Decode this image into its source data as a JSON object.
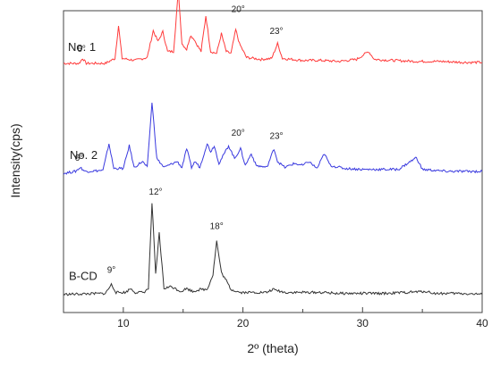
{
  "chart_data": {
    "type": "line",
    "title": "",
    "xlabel": "2º (theta)",
    "ylabel": "Intensity(cps)",
    "xlim": [
      5,
      40
    ],
    "x_ticks": [
      10,
      20,
      30,
      40
    ],
    "y_ticks_shown": false,
    "grid": false,
    "legend": "none",
    "series": [
      {
        "name": "No. 1",
        "color": "#ff3b3b",
        "baseline": 0.88,
        "points": [
          [
            5,
            0.0
          ],
          [
            6.3,
            0.0
          ],
          [
            6.6,
            0.05
          ],
          [
            6.9,
            0.0
          ],
          [
            8.5,
            0.0
          ],
          [
            9.3,
            0.05
          ],
          [
            9.6,
            0.38
          ],
          [
            9.9,
            0.05
          ],
          [
            11.0,
            0.03
          ],
          [
            12.0,
            0.06
          ],
          [
            12.5,
            0.33
          ],
          [
            12.9,
            0.22
          ],
          [
            13.3,
            0.32
          ],
          [
            13.7,
            0.12
          ],
          [
            14.2,
            0.12
          ],
          [
            14.6,
            0.73
          ],
          [
            14.9,
            0.2
          ],
          [
            15.3,
            0.14
          ],
          [
            15.6,
            0.28
          ],
          [
            15.9,
            0.25
          ],
          [
            16.1,
            0.2
          ],
          [
            16.5,
            0.12
          ],
          [
            16.9,
            0.48
          ],
          [
            17.3,
            0.12
          ],
          [
            17.8,
            0.1
          ],
          [
            18.2,
            0.3
          ],
          [
            18.6,
            0.12
          ],
          [
            19.0,
            0.1
          ],
          [
            19.4,
            0.34
          ],
          [
            19.7,
            0.2
          ],
          [
            20.3,
            0.06
          ],
          [
            21.5,
            0.04
          ],
          [
            22.4,
            0.05
          ],
          [
            22.9,
            0.2
          ],
          [
            23.3,
            0.05
          ],
          [
            25.0,
            0.03
          ],
          [
            26.5,
            0.03
          ],
          [
            28.0,
            0.02
          ],
          [
            29.5,
            0.04
          ],
          [
            30.5,
            0.12
          ],
          [
            31.0,
            0.04
          ],
          [
            32.5,
            0.03
          ],
          [
            34.5,
            0.02
          ],
          [
            36.5,
            0.02
          ],
          [
            38.5,
            0.01
          ],
          [
            40,
            0.01
          ]
        ]
      },
      {
        "name": "No. 2",
        "color": "#3a3adf",
        "baseline": 0.48,
        "points": [
          [
            5,
            0.0
          ],
          [
            6.0,
            0.02
          ],
          [
            6.4,
            0.06
          ],
          [
            6.8,
            0.02
          ],
          [
            8.3,
            0.03
          ],
          [
            8.8,
            0.3
          ],
          [
            9.2,
            0.05
          ],
          [
            10.0,
            0.05
          ],
          [
            10.5,
            0.28
          ],
          [
            10.9,
            0.06
          ],
          [
            11.6,
            0.12
          ],
          [
            12.0,
            0.06
          ],
          [
            12.4,
            0.72
          ],
          [
            12.8,
            0.15
          ],
          [
            13.4,
            0.06
          ],
          [
            14.5,
            0.12
          ],
          [
            14.9,
            0.06
          ],
          [
            15.3,
            0.25
          ],
          [
            15.7,
            0.06
          ],
          [
            16.0,
            0.12
          ],
          [
            16.4,
            0.06
          ],
          [
            17.0,
            0.3
          ],
          [
            17.3,
            0.22
          ],
          [
            17.6,
            0.28
          ],
          [
            18.0,
            0.1
          ],
          [
            18.8,
            0.28
          ],
          [
            19.3,
            0.15
          ],
          [
            19.8,
            0.25
          ],
          [
            20.2,
            0.08
          ],
          [
            20.7,
            0.2
          ],
          [
            21.1,
            0.08
          ],
          [
            22.0,
            0.06
          ],
          [
            22.6,
            0.25
          ],
          [
            22.9,
            0.12
          ],
          [
            23.5,
            0.06
          ],
          [
            24.3,
            0.1
          ],
          [
            25.0,
            0.08
          ],
          [
            25.5,
            0.12
          ],
          [
            26.2,
            0.05
          ],
          [
            26.8,
            0.2
          ],
          [
            27.3,
            0.08
          ],
          [
            28.5,
            0.05
          ],
          [
            30.0,
            0.04
          ],
          [
            31.5,
            0.04
          ],
          [
            33.0,
            0.04
          ],
          [
            34.5,
            0.16
          ],
          [
            35.0,
            0.04
          ],
          [
            37.0,
            0.02
          ],
          [
            40,
            0.02
          ]
        ]
      },
      {
        "name": "B-CD",
        "color": "#333333",
        "baseline": 0.04,
        "points": [
          [
            5,
            0.0
          ],
          [
            8.5,
            0.01
          ],
          [
            9.0,
            0.1
          ],
          [
            9.4,
            0.02
          ],
          [
            10.2,
            0.02
          ],
          [
            10.6,
            0.06
          ],
          [
            11.0,
            0.02
          ],
          [
            11.7,
            0.02
          ],
          [
            12.1,
            0.06
          ],
          [
            12.4,
            0.92
          ],
          [
            12.7,
            0.2
          ],
          [
            13.0,
            0.62
          ],
          [
            13.4,
            0.06
          ],
          [
            14.0,
            0.08
          ],
          [
            14.8,
            0.03
          ],
          [
            15.3,
            0.06
          ],
          [
            15.8,
            0.03
          ],
          [
            16.4,
            0.05
          ],
          [
            17.0,
            0.05
          ],
          [
            17.5,
            0.2
          ],
          [
            17.8,
            0.54
          ],
          [
            18.2,
            0.22
          ],
          [
            18.6,
            0.14
          ],
          [
            19.0,
            0.05
          ],
          [
            19.8,
            0.02
          ],
          [
            21.0,
            0.02
          ],
          [
            22.0,
            0.02
          ],
          [
            22.5,
            0.05
          ],
          [
            23.5,
            0.02
          ],
          [
            25.0,
            0.02
          ],
          [
            26.5,
            0.02
          ],
          [
            28.0,
            0.01
          ],
          [
            30.0,
            0.01
          ],
          [
            32.0,
            0.01
          ],
          [
            35.3,
            0.03
          ],
          [
            36.0,
            0.01
          ],
          [
            38.0,
            0.01
          ],
          [
            40,
            0.0
          ]
        ]
      }
    ],
    "annotations": [
      {
        "text": "6°",
        "x": 6.5,
        "series": 0,
        "level": 0.1
      },
      {
        "text": "20°",
        "x": 19.6,
        "series": 0,
        "level": 0.5
      },
      {
        "text": "23°",
        "x": 22.8,
        "series": 0,
        "level": 0.28
      },
      {
        "text": "6°",
        "x": 6.3,
        "series": 1,
        "level": 0.11
      },
      {
        "text": "20°",
        "x": 19.6,
        "series": 1,
        "level": 0.36
      },
      {
        "text": "23°",
        "x": 22.8,
        "series": 1,
        "level": 0.33
      },
      {
        "text": "12°",
        "x": 12.7,
        "series": 2,
        "level": 0.99
      },
      {
        "text": "9°",
        "x": 9.0,
        "series": 2,
        "level": 0.2
      },
      {
        "text": "18°",
        "x": 17.8,
        "series": 2,
        "level": 0.64
      }
    ]
  }
}
